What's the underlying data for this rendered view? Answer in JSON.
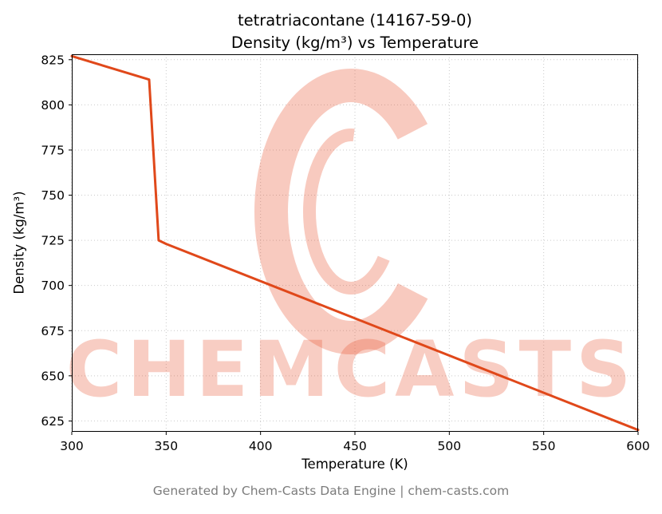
{
  "header": {
    "title_line1": "tetratriacontane (14167-59-0)",
    "title_line2": "Density (kg/m³) vs Temperature"
  },
  "footer": {
    "text": "Generated by Chem-Casts Data Engine | chem-casts.com"
  },
  "watermark": {
    "text": "CHEMCASTS",
    "logo": "chemcasts-c-logo",
    "color": "#e8502a",
    "text_opacity": 0.28,
    "logo_opacity": 0.3
  },
  "chart_data": {
    "type": "line",
    "title": "tetratriacontane (14167-59-0) — Density (kg/m³) vs Temperature",
    "xlabel": "Temperature (K)",
    "ylabel": "Density (kg/m³)",
    "xlim": [
      300,
      600
    ],
    "ylim": [
      619,
      828
    ],
    "xticks": [
      300,
      350,
      400,
      450,
      500,
      550,
      600
    ],
    "yticks": [
      625,
      650,
      675,
      700,
      725,
      750,
      775,
      800,
      825
    ],
    "grid": true,
    "grid_color": "#c9c9c9",
    "legend": "none",
    "series": [
      {
        "name": "density",
        "color": "#e0481a",
        "points": [
          [
            300,
            827
          ],
          [
            341,
            814
          ],
          [
            346,
            725
          ],
          [
            350,
            723
          ],
          [
            600,
            620
          ]
        ]
      }
    ]
  }
}
